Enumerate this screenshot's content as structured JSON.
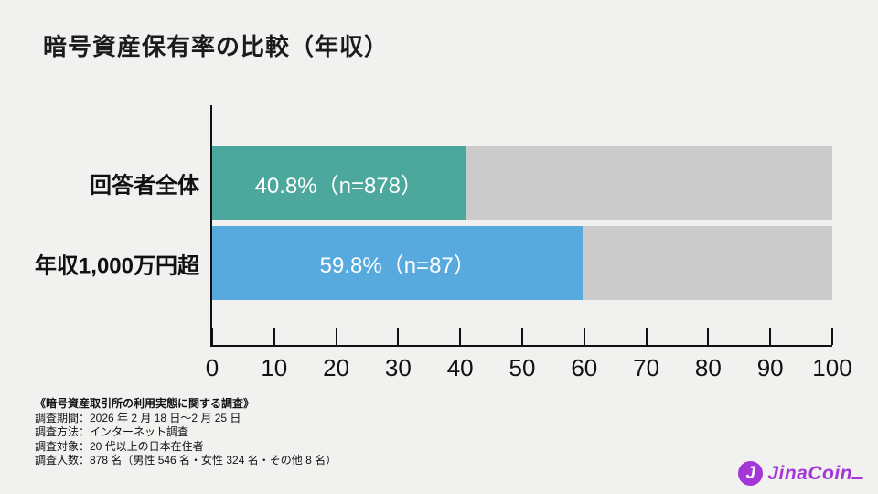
{
  "title": "暗号資産保有率の比較（年収）",
  "colors": {
    "background": "#F1F1EF",
    "axis": "#111111",
    "track": "#CBCBCB",
    "text": "#1B1B1B",
    "logo": "#A436D8"
  },
  "chart_data": {
    "type": "bar",
    "orientation": "horizontal",
    "title": "暗号資産保有率の比較（年収）",
    "categories": [
      "回答者全体",
      "年収1,000万円超"
    ],
    "values": [
      40.8,
      59.8
    ],
    "sample_sizes": [
      878,
      87
    ],
    "bar_labels": [
      "40.8%（n=878）",
      "59.8%（n=87）"
    ],
    "bar_colors": [
      "#4CA79D",
      "#57A9DE"
    ],
    "track_color": "#CBCBCB",
    "xlim": [
      0,
      100
    ],
    "x_ticks": [
      0,
      10,
      20,
      30,
      40,
      50,
      60,
      70,
      80,
      90,
      100
    ],
    "xlabel": "",
    "ylabel": "",
    "grid": false,
    "legend": false
  },
  "footnotes": {
    "heading": "《暗号資産取引所の利用実態に関する調査》",
    "lines": [
      "調査期間：2026 年 2 月 18 日～2 月 25 日",
      "調査方法：インターネット調査",
      "調査対象：20 代以上の日本在住者",
      "調査人数：878 名（男性 546 名・女性 324 名・その他 8 名）"
    ]
  },
  "logo": {
    "mark_letter": "J",
    "text": "JinaCoin"
  }
}
